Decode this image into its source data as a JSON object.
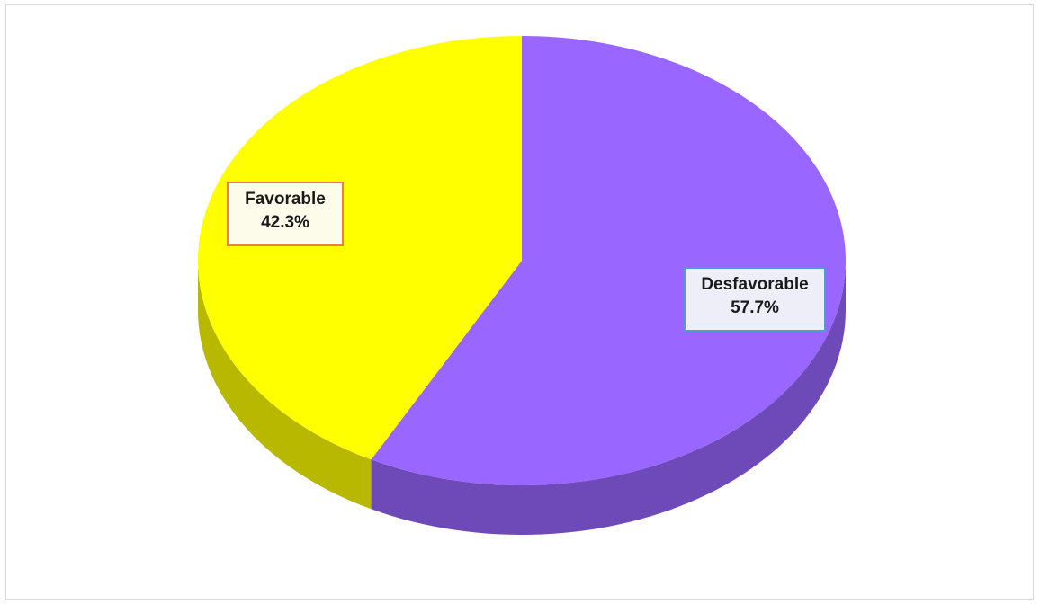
{
  "chart_data": {
    "type": "pie",
    "style": "3d",
    "slices": [
      {
        "label": "Desfavorable",
        "value": 57.7,
        "value_label": "57.7%",
        "color": "#9966ff",
        "label_border": "#4f9bd9",
        "label_bg": "#eeeef8"
      },
      {
        "label": "Favorable",
        "value": 42.3,
        "value_label": "42.3%",
        "color": "#ffff00",
        "label_border": "#f07f3c",
        "label_bg": "#fdfbea"
      }
    ],
    "legend": "none"
  }
}
